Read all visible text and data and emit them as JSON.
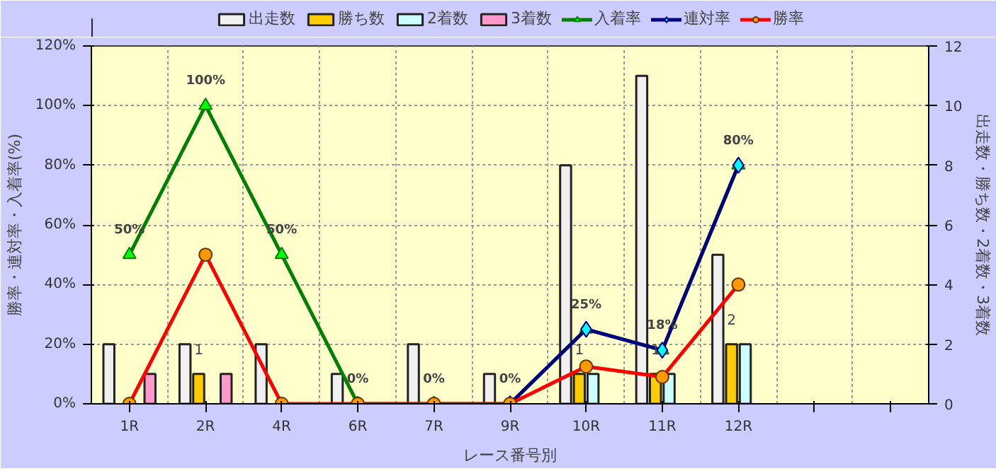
{
  "chart_data": {
    "type": "bar",
    "xlabel": "レース番号別",
    "ylabel": "勝率・連対率・入着率(%)",
    "y2label": "出走数・勝ち数・2着数・3着数",
    "categories": [
      "1R",
      "2R",
      "4R",
      "6R",
      "7R",
      "9R",
      "10R",
      "11R",
      "12R",
      null,
      null
    ],
    "ylim": [
      0,
      120
    ],
    "yticks": [
      {
        "value": 0,
        "label": "0%"
      },
      {
        "value": 20,
        "label": "20%"
      },
      {
        "value": 40,
        "label": "40%"
      },
      {
        "value": 60,
        "label": "60%"
      },
      {
        "value": 80,
        "label": "80%"
      },
      {
        "value": 100,
        "label": "100%"
      },
      {
        "value": 120,
        "label": "120%"
      }
    ],
    "y2lim": [
      0,
      12
    ],
    "y2ticks": [
      0,
      2,
      4,
      6,
      8,
      10,
      12
    ],
    "grid": true,
    "legend": "top",
    "series": [
      {
        "name": "出走数",
        "axis": "y2",
        "color": "#f0f0f0",
        "values": [
          2,
          2,
          2,
          1,
          2,
          1,
          8,
          11,
          5,
          null,
          null
        ]
      },
      {
        "name": "勝ち数",
        "axis": "y2",
        "color": "#ffcc00",
        "values": [
          0,
          1,
          0,
          0,
          0,
          0,
          1,
          1,
          2,
          null,
          null
        ],
        "value_labels": [
          null,
          "1",
          null,
          null,
          null,
          null,
          "1",
          "1",
          "2",
          null,
          null
        ]
      },
      {
        "name": "2着数",
        "axis": "y2",
        "color": "#ccffff",
        "values": [
          0,
          0,
          0,
          0,
          0,
          0,
          1,
          1,
          2,
          null,
          null
        ]
      },
      {
        "name": "3着数",
        "axis": "y2",
        "color": "#ff99cc",
        "values": [
          1,
          1,
          0,
          0,
          0,
          0,
          0,
          0,
          0,
          null,
          null
        ]
      },
      {
        "name": "入着率",
        "type": "line",
        "marker": "triangle",
        "color": "#008000",
        "values": [
          50,
          100,
          50,
          0,
          0,
          0,
          25,
          18,
          80,
          null,
          null
        ],
        "value_labels": [
          "50%",
          "100%",
          "50%",
          "0%",
          "0%",
          "0%",
          "25%",
          "18%",
          "80%",
          null,
          null
        ]
      },
      {
        "name": "連対率",
        "type": "line",
        "marker": "diamond",
        "color": "#000080",
        "values": [
          null,
          null,
          null,
          null,
          null,
          0,
          25,
          18,
          80,
          null,
          null
        ]
      },
      {
        "name": "勝率",
        "type": "line",
        "marker": "circle",
        "color": "#ff0000",
        "values": [
          0,
          50,
          0,
          0,
          0,
          0,
          12.5,
          9,
          40,
          null,
          null
        ]
      }
    ]
  }
}
